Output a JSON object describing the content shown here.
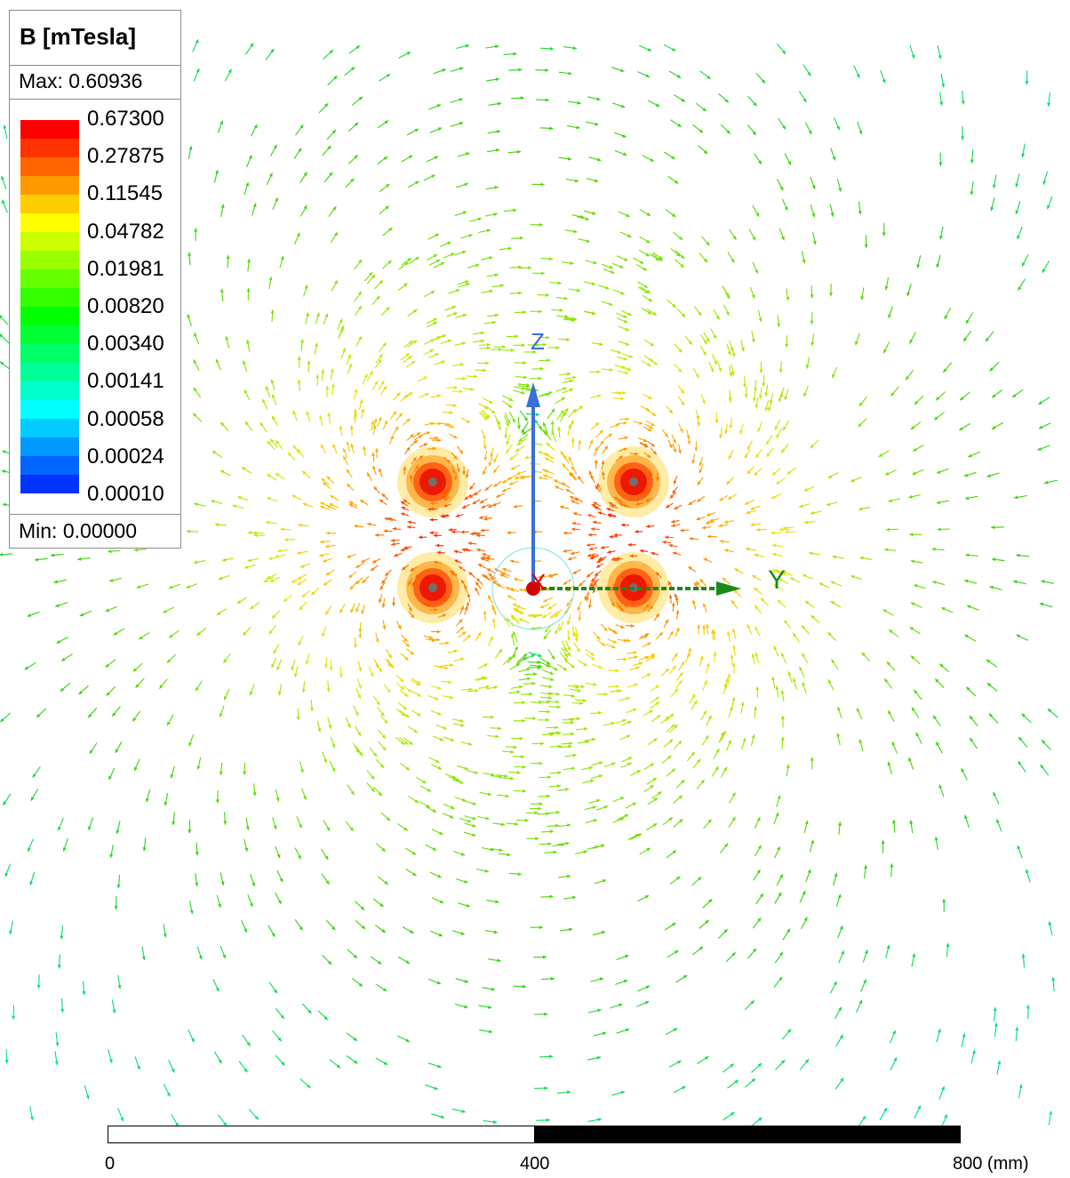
{
  "legend": {
    "title": "B [mTesla]",
    "max_text": "Max: 0.60936",
    "min_text": "Min: 0.00000",
    "tick_values": [
      "0.67300",
      "0.27875",
      "0.11545",
      "0.04782",
      "0.01981",
      "0.00820",
      "0.00340",
      "0.00141",
      "0.00058",
      "0.00024",
      "0.00010"
    ],
    "band_colors": [
      "#ff0000",
      "#ff3300",
      "#ff6600",
      "#ff9900",
      "#ffcc00",
      "#ffff00",
      "#ccff00",
      "#99ff00",
      "#66ff00",
      "#33ff00",
      "#00ff00",
      "#00ff33",
      "#00ff66",
      "#00ff99",
      "#00ffcc",
      "#00ffff",
      "#00ccff",
      "#0099ff",
      "#0066ff",
      "#0033ff"
    ]
  },
  "axes": {
    "z_label": "Z",
    "y_label": "Y",
    "x_label": "X"
  },
  "scale_bar": {
    "labels": [
      "0",
      "400",
      "800 (mm)"
    ]
  },
  "colors": {
    "z_axis": "#3a6fd8",
    "y_axis": "#1a8a1a",
    "x_axis": "#e00000",
    "conductor_center": "#707070"
  }
}
